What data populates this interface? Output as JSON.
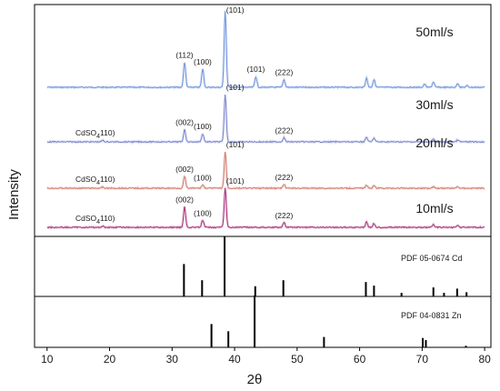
{
  "chart_data": {
    "type": "line",
    "xlabel": "2θ",
    "ylabel": "Intensity",
    "xlim": [
      8,
      81
    ],
    "x_ticks": [
      10,
      20,
      30,
      40,
      50,
      60,
      70,
      80
    ],
    "grid": false,
    "legend": "none",
    "series": [
      {
        "name": "50ml/s",
        "color": "#6f93de",
        "peaks": [
          {
            "x": 32.0,
            "h": 0.33,
            "label": "(112)"
          },
          {
            "x": 34.9,
            "h": 0.24,
            "label": "(100)"
          },
          {
            "x": 38.5,
            "h": 1.0,
            "label": "(101)"
          },
          {
            "x": 43.4,
            "h": 0.14,
            "label": "(101)"
          },
          {
            "x": 47.9,
            "h": 0.1,
            "label": "(222)"
          },
          {
            "x": 61.1,
            "h": 0.12
          },
          {
            "x": 62.3,
            "h": 0.1
          },
          {
            "x": 70.4,
            "h": 0.04
          },
          {
            "x": 71.8,
            "h": 0.07
          },
          {
            "x": 75.7,
            "h": 0.05
          },
          {
            "x": 77.2,
            "h": 0.02
          }
        ]
      },
      {
        "name": "30ml/s",
        "color": "#7b86cf",
        "peaks": [
          {
            "x": 18.9,
            "h": 0.03,
            "label": "CdSO4(110)"
          },
          {
            "x": 32.0,
            "h": 0.26,
            "label": "(002)"
          },
          {
            "x": 34.9,
            "h": 0.17,
            "label": "(100)"
          },
          {
            "x": 38.5,
            "h": 1.0,
            "label": "(101)"
          },
          {
            "x": 47.9,
            "h": 0.09,
            "label": "(222)"
          },
          {
            "x": 61.1,
            "h": 0.1
          },
          {
            "x": 62.3,
            "h": 0.08
          },
          {
            "x": 71.8,
            "h": 0.06
          },
          {
            "x": 75.7,
            "h": 0.04
          }
        ]
      },
      {
        "name": "20ml/s",
        "color": "#d07c6e",
        "peaks": [
          {
            "x": 18.9,
            "h": 0.03,
            "label": "CdSO4(110)"
          },
          {
            "x": 32.0,
            "h": 0.33,
            "label": "(002)"
          },
          {
            "x": 34.9,
            "h": 0.09,
            "label": "(100)"
          },
          {
            "x": 38.5,
            "h": 1.0,
            "label": "(101)"
          },
          {
            "x": 47.9,
            "h": 0.1,
            "label": "(222)"
          },
          {
            "x": 61.1,
            "h": 0.09
          },
          {
            "x": 62.3,
            "h": 0.07
          },
          {
            "x": 71.8,
            "h": 0.05
          },
          {
            "x": 75.7,
            "h": 0.04
          }
        ]
      },
      {
        "name": "10ml/s",
        "color": "#a8327a",
        "peaks": [
          {
            "x": 18.9,
            "h": 0.03,
            "label": "CdSO4(110)"
          },
          {
            "x": 32.0,
            "h": 0.52,
            "label": "(002)"
          },
          {
            "x": 34.9,
            "h": 0.18,
            "label": "(100)"
          },
          {
            "x": 38.5,
            "h": 1.0,
            "label": "(101)"
          },
          {
            "x": 47.9,
            "h": 0.12,
            "label": "(222)"
          },
          {
            "x": 61.1,
            "h": 0.14
          },
          {
            "x": 62.3,
            "h": 0.1
          },
          {
            "x": 71.8,
            "h": 0.07
          },
          {
            "x": 75.7,
            "h": 0.05
          }
        ]
      }
    ],
    "references": [
      {
        "name": "PDF 05-0674  Cd",
        "lines": [
          {
            "x": 31.9,
            "h": 0.54
          },
          {
            "x": 34.8,
            "h": 0.27
          },
          {
            "x": 38.4,
            "h": 1.0
          },
          {
            "x": 43.3,
            "h": 0.17
          },
          {
            "x": 47.8,
            "h": 0.27
          },
          {
            "x": 61.0,
            "h": 0.24
          },
          {
            "x": 62.3,
            "h": 0.18
          },
          {
            "x": 66.7,
            "h": 0.06
          },
          {
            "x": 71.8,
            "h": 0.15
          },
          {
            "x": 73.5,
            "h": 0.06
          },
          {
            "x": 75.6,
            "h": 0.13
          },
          {
            "x": 77.1,
            "h": 0.07
          }
        ]
      },
      {
        "name": "PDF 04-0831  Zn",
        "lines": [
          {
            "x": 36.3,
            "h": 0.45
          },
          {
            "x": 39.0,
            "h": 0.31
          },
          {
            "x": 43.2,
            "h": 1.0
          },
          {
            "x": 54.3,
            "h": 0.2
          },
          {
            "x": 70.1,
            "h": 0.18
          },
          {
            "x": 70.6,
            "h": 0.14
          },
          {
            "x": 77.0,
            "h": 0.03
          }
        ]
      }
    ]
  }
}
